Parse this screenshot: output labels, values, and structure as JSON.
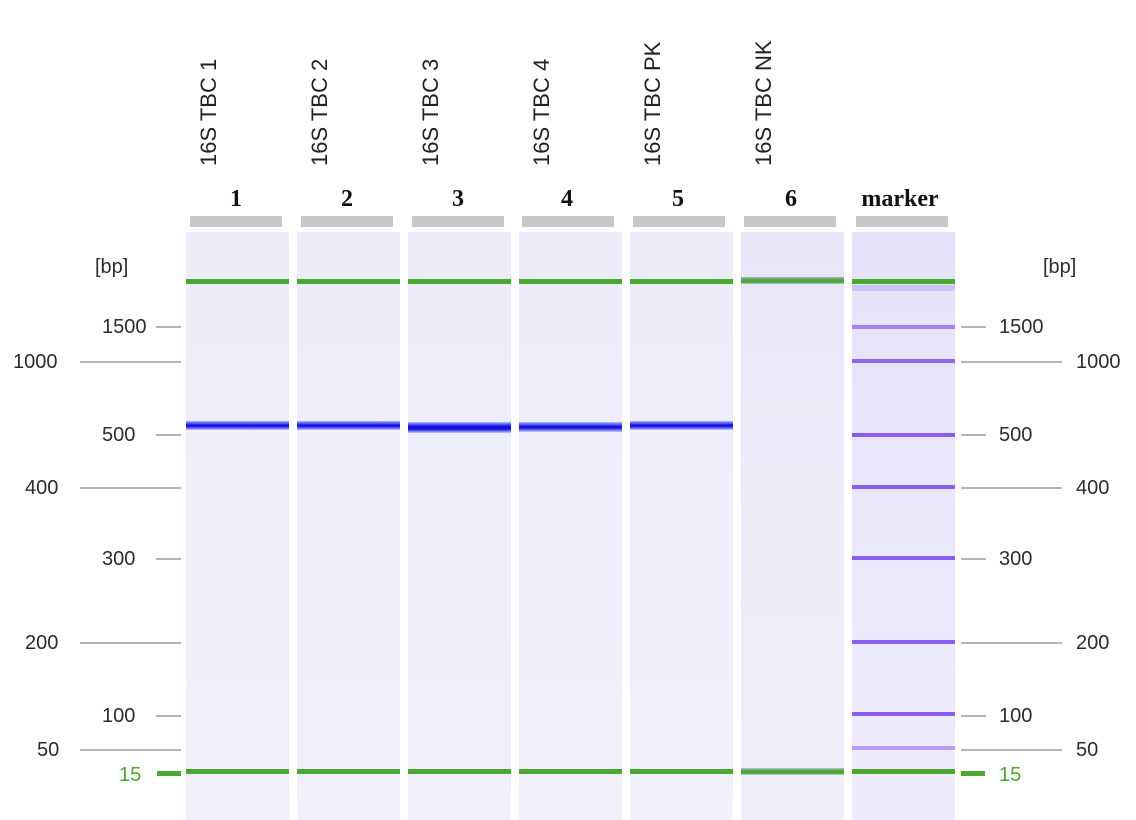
{
  "unit_label": "[bp]",
  "samples": [
    {
      "label": "16S TBC 1",
      "number": "1"
    },
    {
      "label": "16S TBC 2",
      "number": "2"
    },
    {
      "label": "16S TBC 3",
      "number": "3"
    },
    {
      "label": "16S TBC 4",
      "number": "4"
    },
    {
      "label": "16S TBC PK",
      "number": "5"
    },
    {
      "label": "16S TBC NK",
      "number": "6"
    },
    {
      "label": "",
      "number": "marker"
    }
  ],
  "ladder": {
    "inner_labels": [
      "1500",
      "500",
      "300",
      "100"
    ],
    "outer_labels": [
      "1000",
      "400",
      "200",
      "50"
    ],
    "reference_label": "15"
  },
  "colors": {
    "upper_marker_band": "#4aa832",
    "lower_marker_band": "#4aa832",
    "sample_band": "#1414e6",
    "ladder_band": "#8a5cf0",
    "reference_label": "#4aa832"
  }
}
